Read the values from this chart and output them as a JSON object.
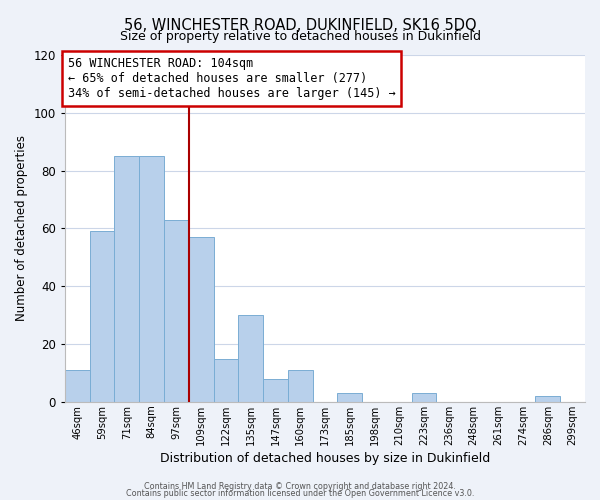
{
  "title": "56, WINCHESTER ROAD, DUKINFIELD, SK16 5DQ",
  "subtitle": "Size of property relative to detached houses in Dukinfield",
  "xlabel": "Distribution of detached houses by size in Dukinfield",
  "ylabel": "Number of detached properties",
  "bar_labels": [
    "46sqm",
    "59sqm",
    "71sqm",
    "84sqm",
    "97sqm",
    "109sqm",
    "122sqm",
    "135sqm",
    "147sqm",
    "160sqm",
    "173sqm",
    "185sqm",
    "198sqm",
    "210sqm",
    "223sqm",
    "236sqm",
    "248sqm",
    "261sqm",
    "274sqm",
    "286sqm",
    "299sqm"
  ],
  "bar_values": [
    11,
    59,
    85,
    85,
    63,
    57,
    15,
    30,
    8,
    11,
    0,
    3,
    0,
    0,
    3,
    0,
    0,
    0,
    0,
    2,
    0
  ],
  "bar_color": "#b8d0eb",
  "bar_edge_color": "#7aadd4",
  "ylim": [
    0,
    120
  ],
  "yticks": [
    0,
    20,
    40,
    60,
    80,
    100,
    120
  ],
  "vline_x_index": 4.5,
  "vline_color": "#aa0000",
  "annotation_box_text": "56 WINCHESTER ROAD: 104sqm\n← 65% of detached houses are smaller (277)\n34% of semi-detached houses are larger (145) →",
  "footer_line1": "Contains HM Land Registry data © Crown copyright and database right 2024.",
  "footer_line2": "Contains public sector information licensed under the Open Government Licence v3.0.",
  "background_color": "#eef2f9",
  "plot_bg_color": "#ffffff",
  "grid_color": "#ccd6e8"
}
